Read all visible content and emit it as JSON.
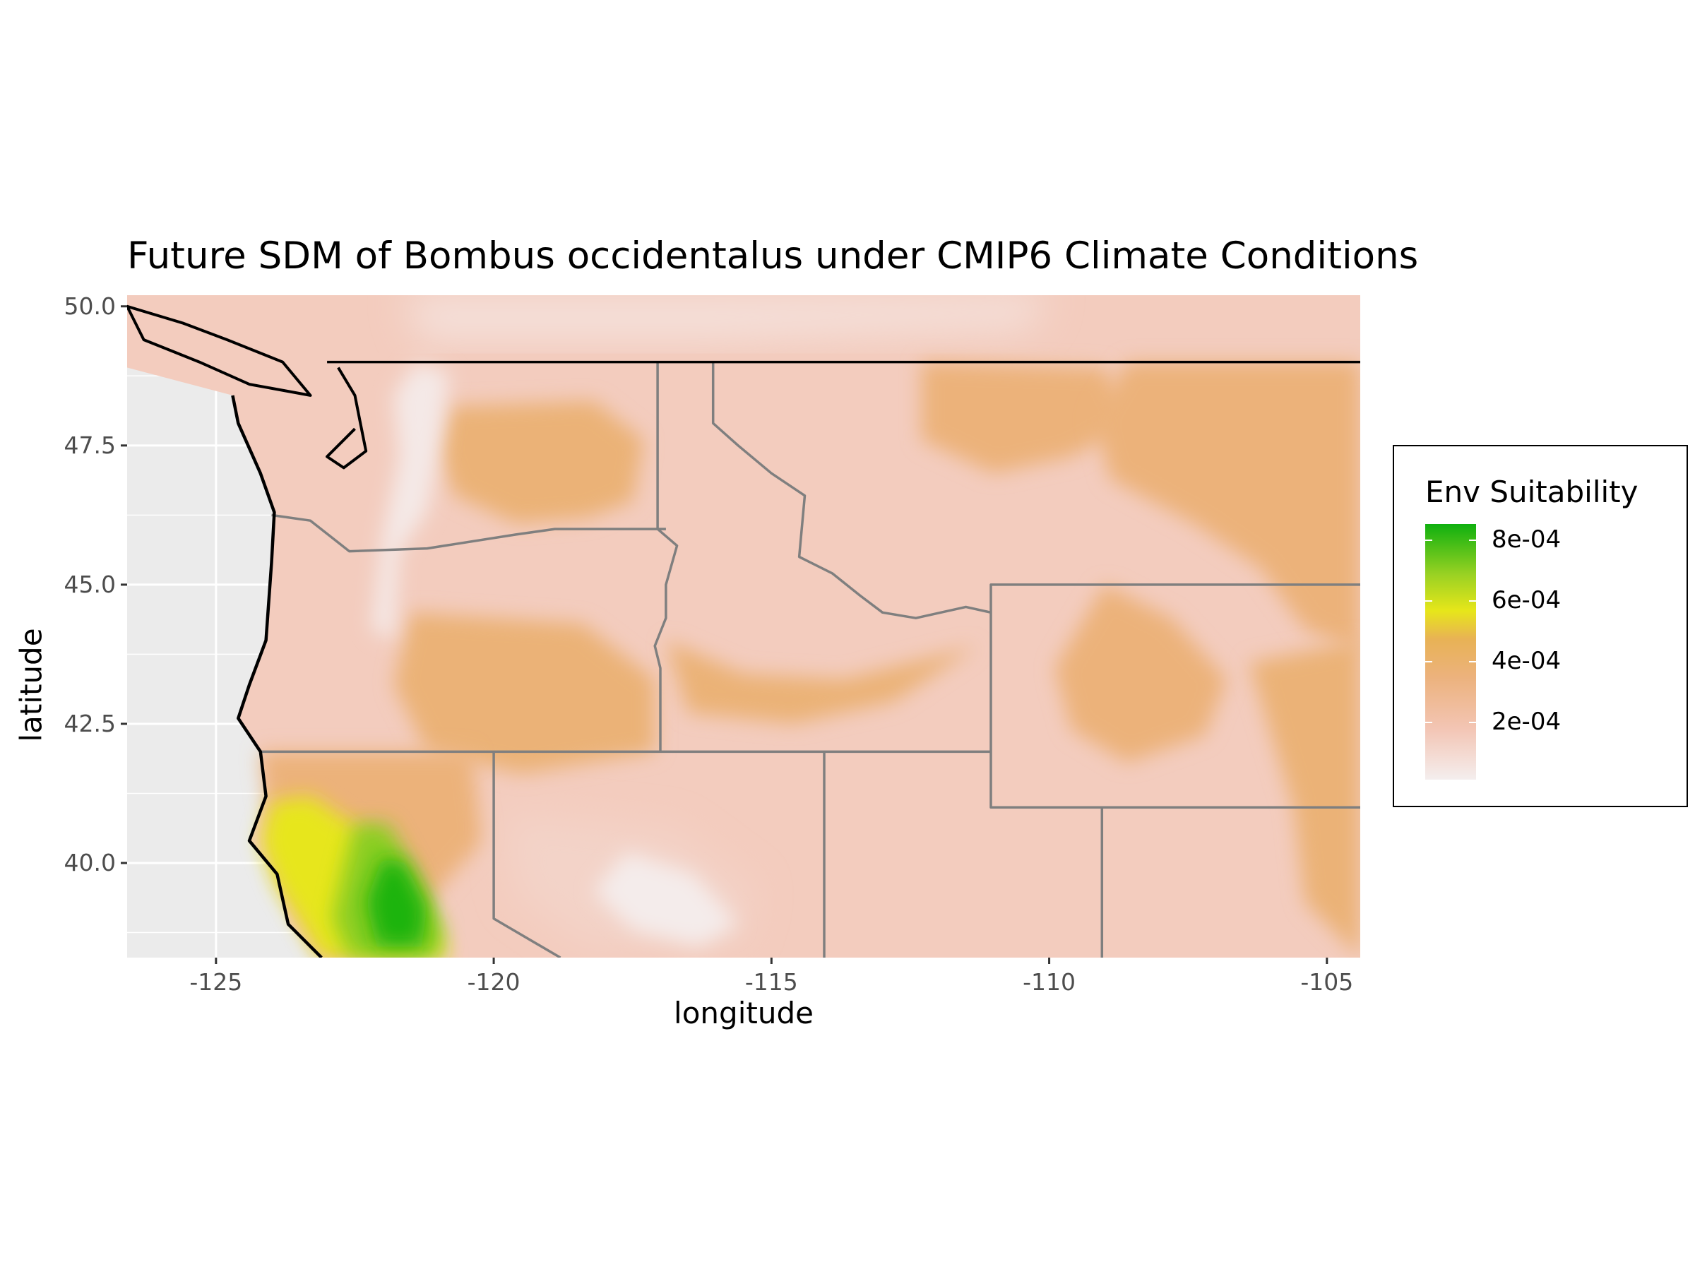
{
  "title": "Future SDM of Bombus occidentalus under CMIP6 Climate Conditions",
  "chart_data": {
    "type": "heatmap",
    "subtype": "raster map (species distribution model)",
    "title": "Future SDM of Bombus occidentalus under CMIP6 Climate Conditions",
    "xlabel": "longitude",
    "ylabel": "latitude",
    "xlim": [
      -126.6,
      -104.4
    ],
    "ylim": [
      38.3,
      50.2
    ],
    "x_ticks": [
      -125,
      -120,
      -115,
      -110,
      -105
    ],
    "x_tick_labels": [
      "-125",
      "-120",
      "-115",
      "-110",
      "-105"
    ],
    "y_ticks": [
      40.0,
      42.5,
      45.0,
      47.5,
      50.0
    ],
    "y_tick_labels": [
      "40.0",
      "42.5",
      "45.0",
      "47.5",
      "50.0"
    ],
    "grid": true,
    "legend": {
      "title": "Env Suitability",
      "placement": "right",
      "breaks": [
        0.0002,
        0.0004,
        0.0006,
        0.0008
      ],
      "labels": [
        "2e-04",
        "4e-04",
        "6e-04",
        "8e-04"
      ],
      "range": [
        1e-05,
        0.00085
      ],
      "color_stops": [
        {
          "value": 1e-05,
          "color": "#f4eeee"
        },
        {
          "value": 0.00018,
          "color": "#f3c5b4"
        },
        {
          "value": 0.00034,
          "color": "#ecb27d"
        },
        {
          "value": 0.00047,
          "color": "#e8b255"
        },
        {
          "value": 0.00056,
          "color": "#e7e61a"
        },
        {
          "value": 0.00068,
          "color": "#9bd223"
        },
        {
          "value": 0.00085,
          "color": "#0fb00f"
        }
      ]
    },
    "background_color": "#ebebeb",
    "border_colors": {
      "coast_and_canada": "#000000",
      "states": "#7f7f7f"
    },
    "boundaries": {
      "canada_border": [
        [
          -123.0,
          49.0
        ],
        [
          -104.4,
          49.0
        ]
      ],
      "wa_or": [
        [
          -124.0,
          46.25
        ],
        [
          -123.3,
          46.15
        ],
        [
          -122.6,
          45.6
        ],
        [
          -121.2,
          45.65
        ],
        [
          -119.6,
          45.9
        ],
        [
          -118.9,
          46.0
        ],
        [
          -116.9,
          46.0
        ]
      ],
      "wa_id_or_id": [
        [
          -117.05,
          49.0
        ],
        [
          -117.05,
          46.0
        ],
        [
          -116.7,
          45.7
        ],
        [
          -116.9,
          45.0
        ],
        [
          -116.9,
          44.4
        ],
        [
          -117.1,
          43.9
        ],
        [
          -117.0,
          43.5
        ],
        [
          -117.0,
          42.0
        ]
      ],
      "id_mt": [
        [
          -116.05,
          49.0
        ],
        [
          -116.05,
          47.9
        ],
        [
          -115.6,
          47.5
        ],
        [
          -115.0,
          47.0
        ],
        [
          -114.4,
          46.6
        ],
        [
          -114.5,
          45.5
        ],
        [
          -113.9,
          45.2
        ],
        [
          -113.4,
          44.8
        ],
        [
          -113.0,
          44.5
        ],
        [
          -112.4,
          44.4
        ],
        [
          -111.5,
          44.6
        ],
        [
          -111.05,
          44.5
        ]
      ],
      "wy": [
        [
          -111.05,
          45.0
        ],
        [
          -104.4,
          45.0
        ],
        [
          -111.05,
          45.0
        ],
        [
          -111.05,
          41.0
        ],
        [
          -104.4,
          41.0
        ]
      ],
      "north_42": [
        [
          -124.2,
          42.0
        ],
        [
          -111.05,
          42.0
        ]
      ],
      "nv_ca": [
        [
          -120.0,
          42.0
        ],
        [
          -120.0,
          39.0
        ],
        [
          -118.8,
          38.3
        ]
      ],
      "nv_ut": [
        [
          -114.05,
          42.0
        ],
        [
          -114.05,
          38.3
        ]
      ],
      "ut_co": [
        [
          -109.05,
          41.0
        ],
        [
          -109.05,
          38.3
        ]
      ],
      "coastline": [
        [
          -124.7,
          48.4
        ],
        [
          -124.6,
          47.9
        ],
        [
          -124.2,
          47.0
        ],
        [
          -123.95,
          46.3
        ],
        [
          -124.0,
          45.4
        ],
        [
          -124.1,
          44.0
        ],
        [
          -124.4,
          43.2
        ],
        [
          -124.6,
          42.6
        ],
        [
          -124.2,
          42.0
        ],
        [
          -124.1,
          41.2
        ],
        [
          -124.4,
          40.4
        ],
        [
          -123.9,
          39.8
        ],
        [
          -123.7,
          38.9
        ],
        [
          -123.1,
          38.3
        ]
      ],
      "puget_sound": [
        [
          -122.8,
          48.9
        ],
        [
          -122.5,
          48.4
        ],
        [
          -122.4,
          47.9
        ],
        [
          -122.3,
          47.4
        ],
        [
          -122.7,
          47.1
        ],
        [
          -123.0,
          47.3
        ],
        [
          -122.5,
          47.8
        ]
      ],
      "vancouver_island": [
        [
          -126.6,
          50.0
        ],
        [
          -125.6,
          49.7
        ],
        [
          -124.8,
          49.4
        ],
        [
          -123.8,
          49.0
        ],
        [
          -123.3,
          48.4
        ],
        [
          -124.4,
          48.6
        ],
        [
          -125.3,
          49.0
        ],
        [
          -126.3,
          49.4
        ]
      ]
    },
    "regions": [
      {
        "name": "background-suitability",
        "value": 0.00015
      },
      {
        "name": "cascades-white-spine",
        "value": 3e-05
      },
      {
        "name": "bc-mountains",
        "value": 7e-05
      },
      {
        "name": "columbia-basin",
        "value": 0.00036
      },
      {
        "name": "montana-plains",
        "value": 0.00035
      },
      {
        "name": "eastern-montana",
        "value": 0.00035
      },
      {
        "name": "snake-river-plain",
        "value": 0.00036
      },
      {
        "name": "southeast-oregon",
        "value": 0.00036
      },
      {
        "name": "wyoming-basin",
        "value": 0.00035
      },
      {
        "name": "wyoming-plains-east",
        "value": 0.00036
      },
      {
        "name": "great-basin-lowland",
        "value": 0.00012
      },
      {
        "name": "nevada-ranges-white",
        "value": 2e-05
      },
      {
        "name": "northern-ca-coast",
        "value": 0.00035
      },
      {
        "name": "ca-coast-yellow",
        "value": 0.00056
      },
      {
        "name": "sacramento-valley-green",
        "value": 0.0007
      },
      {
        "name": "sacramento-valley-core",
        "value": 0.00083
      }
    ]
  }
}
